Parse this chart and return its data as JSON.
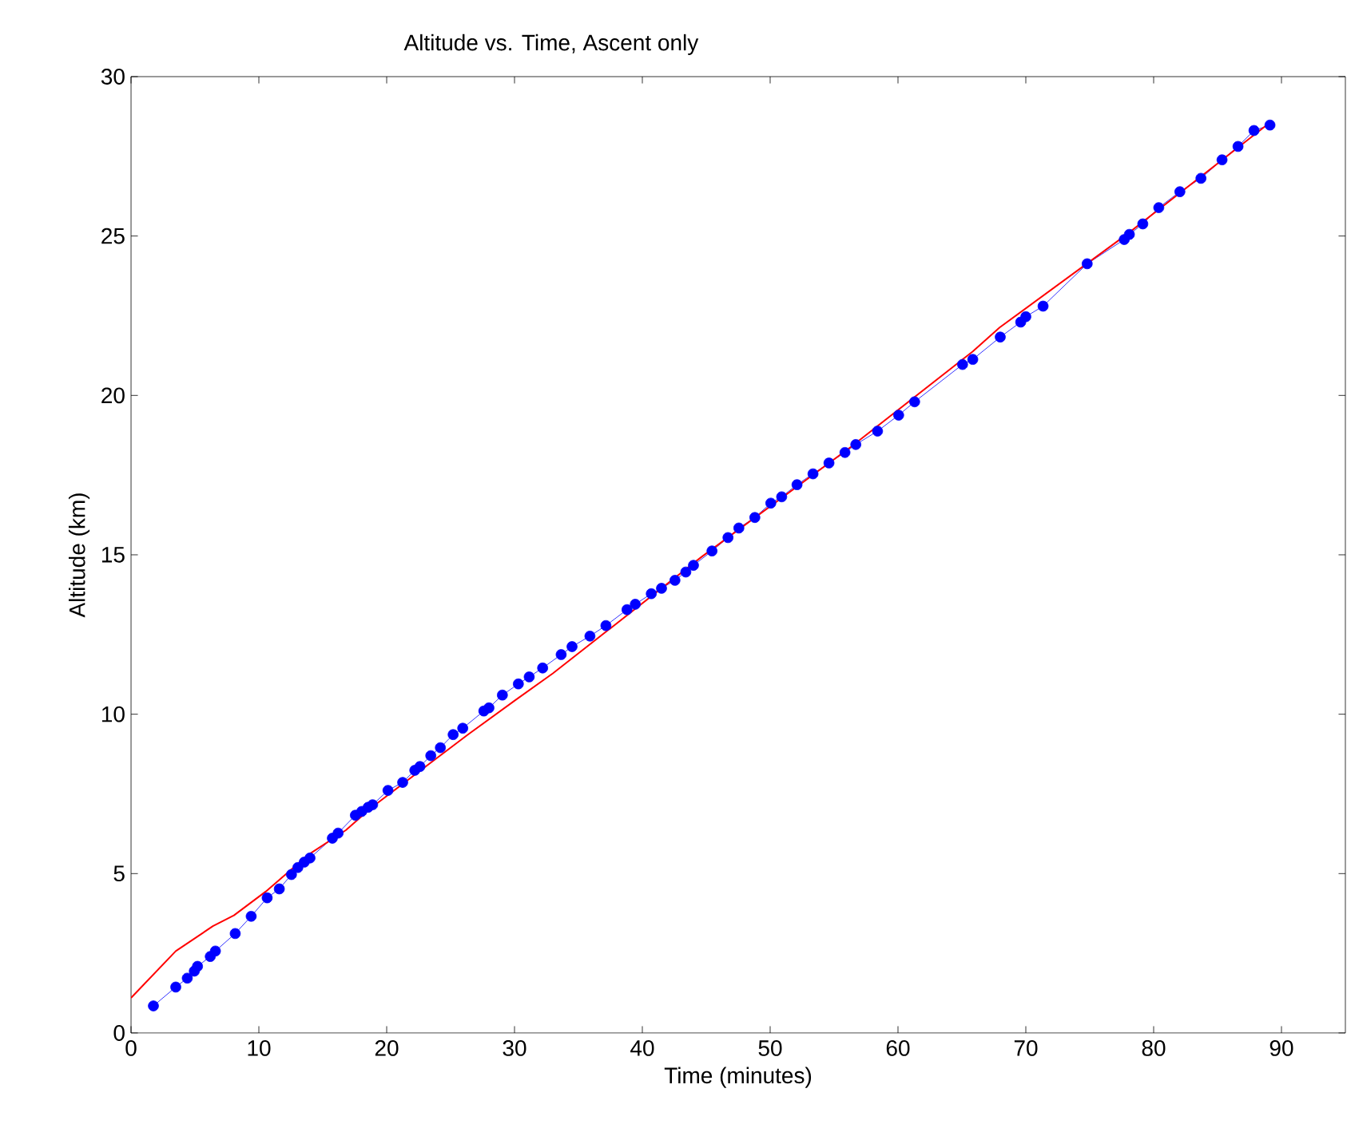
{
  "chart_data": {
    "type": "line",
    "title": "Altitude vs. Time, Ascent only",
    "xlabel": "Time (minutes)",
    "ylabel": "Altitude (km)",
    "xlim": [
      0,
      95
    ],
    "ylim": [
      0,
      30
    ],
    "xticks": [
      0,
      10,
      20,
      30,
      40,
      50,
      60,
      70,
      80,
      90
    ],
    "yticks": [
      0,
      5,
      10,
      15,
      20,
      25,
      30
    ],
    "grid": false,
    "series": [
      {
        "type": "line",
        "marker": "circle",
        "color": "#0000ff",
        "x": [
          1.75,
          3.5,
          4.4,
          4.95,
          5.2,
          6.2,
          6.6,
          8.15,
          9.4,
          10.65,
          11.6,
          12.55,
          13.05,
          13.55,
          14.0,
          15.75,
          16.2,
          17.55,
          18.05,
          18.55,
          18.9,
          20.1,
          21.25,
          22.2,
          22.6,
          23.45,
          24.2,
          25.2,
          25.95,
          27.6,
          28.0,
          29.05,
          30.3,
          31.15,
          32.2,
          33.65,
          34.5,
          35.9,
          37.15,
          38.8,
          39.45,
          40.7,
          41.5,
          42.55,
          43.4,
          44.0,
          45.45,
          46.7,
          47.55,
          48.8,
          50.05,
          50.9,
          52.1,
          53.35,
          54.6,
          55.85,
          56.7,
          58.4,
          60.05,
          61.3,
          65.05,
          65.85,
          68.0,
          69.6,
          70.0,
          71.35,
          74.8,
          77.7,
          78.1,
          79.15,
          80.4,
          82.05,
          83.7,
          85.35,
          86.6,
          87.85,
          89.1
        ],
        "values": [
          0.85,
          1.44,
          1.72,
          1.94,
          2.09,
          2.4,
          2.57,
          3.12,
          3.66,
          4.24,
          4.52,
          4.97,
          5.19,
          5.36,
          5.49,
          6.11,
          6.27,
          6.83,
          6.95,
          7.08,
          7.16,
          7.61,
          7.86,
          8.24,
          8.36,
          8.7,
          8.95,
          9.36,
          9.56,
          10.1,
          10.2,
          10.6,
          10.95,
          11.17,
          11.45,
          11.87,
          12.12,
          12.45,
          12.78,
          13.28,
          13.45,
          13.78,
          13.95,
          14.2,
          14.46,
          14.67,
          15.12,
          15.54,
          15.84,
          16.17,
          16.62,
          16.82,
          17.2,
          17.54,
          17.88,
          18.21,
          18.46,
          18.88,
          19.38,
          19.8,
          20.97,
          21.13,
          21.83,
          22.3,
          22.47,
          22.8,
          24.13,
          24.89,
          25.05,
          25.38,
          25.89,
          26.39,
          26.81,
          27.39,
          27.81,
          28.31,
          28.48
        ]
      },
      {
        "type": "line",
        "marker": "none",
        "color": "#ff0000",
        "x": [
          0,
          3.5,
          6.4,
          8.05,
          10.55,
          13.9,
          16.8,
          18.9,
          22.2,
          26.35,
          30.1,
          33.0,
          44.65,
          56.3,
          65.85,
          67.95,
          77.9,
          89.1
        ],
        "values": [
          1.1,
          2.57,
          3.35,
          3.69,
          4.44,
          5.6,
          6.36,
          7.1,
          8.1,
          9.36,
          10.45,
          11.28,
          14.94,
          18.38,
          21.38,
          22.13,
          25.05,
          28.56
        ]
      }
    ]
  }
}
